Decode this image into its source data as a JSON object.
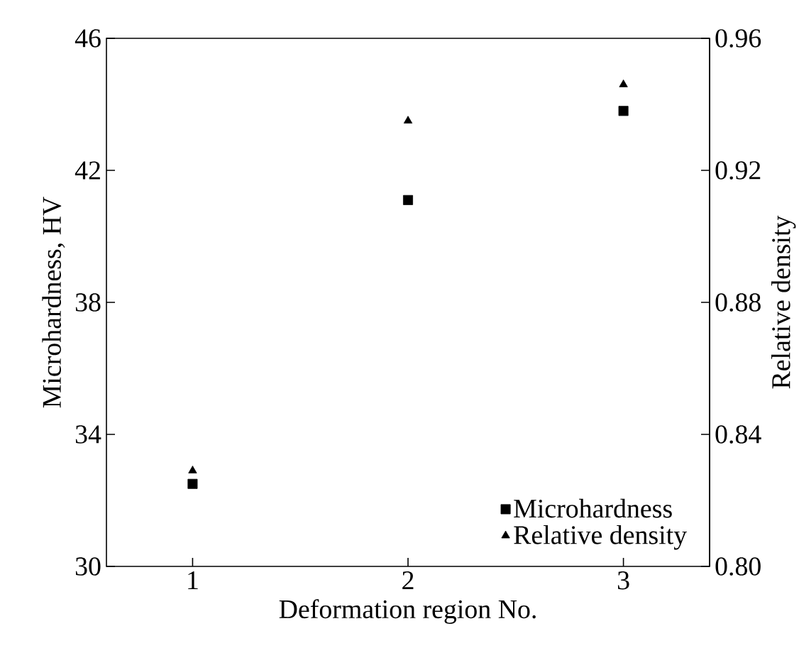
{
  "chart_data": {
    "type": "scatter",
    "xlabel": "Deformation region No.",
    "ylabel": "Microhardness, HV",
    "y2label": "Relative density",
    "x": [
      1,
      2,
      3
    ],
    "xlim": [
      0.6,
      3.4
    ],
    "xticks": [
      1,
      2,
      3
    ],
    "ylim": [
      30,
      46
    ],
    "yticks": [
      30,
      34,
      38,
      42,
      46
    ],
    "y2lim": [
      0.8,
      0.96
    ],
    "y2ticks": [
      {
        "value": 0.8,
        "label": "0.80"
      },
      {
        "value": 0.84,
        "label": "0.84"
      },
      {
        "value": 0.88,
        "label": "0.88"
      },
      {
        "value": 0.92,
        "label": "0.92"
      },
      {
        "value": 0.96,
        "label": "0.96"
      }
    ],
    "legend": "bottom right",
    "grid": false,
    "series": [
      {
        "name": "Microhardness",
        "color": "#000000",
        "marker": "square",
        "values": [
          32.5,
          41.1,
          43.8
        ]
      },
      {
        "name": "Relative density",
        "color": "#000000",
        "marker": "triangle",
        "axis": "y2",
        "values": [
          0.829,
          0.935,
          0.946
        ]
      }
    ]
  }
}
